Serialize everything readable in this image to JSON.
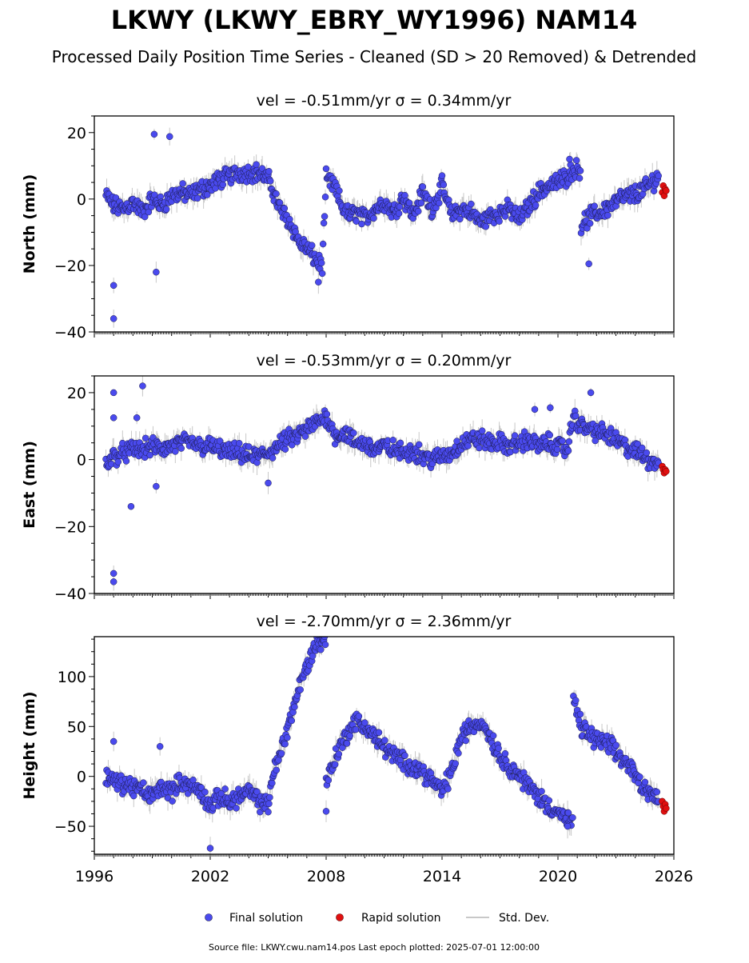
{
  "title": "LKWY (LKWY_EBRY_WY1996) NAM14",
  "subtitle": "Processed Daily Position Time Series - Cleaned (SD > 20 Removed) & Detrended",
  "footer": "Source file: LKWY.cwu.nam14.pos  Last epoch plotted: 2025-07-01 12:00:00",
  "legend": {
    "placement": "bottom-center",
    "items": [
      {
        "label": "Final solution",
        "color": "#4a4aee",
        "marker": "circle"
      },
      {
        "label": "Rapid solution",
        "color": "#e01010",
        "marker": "circle"
      },
      {
        "label": "Std. Dev.",
        "color": "#c8c8c8",
        "marker": "line"
      }
    ]
  },
  "colors": {
    "final": "#4a4aee",
    "rapid": "#e01010",
    "stddev": "#c8c8c8",
    "edge": "#1a1a4a"
  },
  "chart_data": [
    {
      "type": "scatter",
      "panel_title": "vel = -0.51mm/yr   σ = 0.34mm/yr",
      "ylabel": "North (mm)",
      "xlim": [
        1996,
        2026
      ],
      "ylim": [
        -40,
        25
      ],
      "yticks": [
        -40,
        -20,
        0,
        20
      ],
      "xticks": [
        1996,
        2002,
        2008,
        2014,
        2020,
        2026
      ],
      "grid": false,
      "series": [
        {
          "name": "Final solution",
          "role": "final",
          "x": [
            1996.6,
            1997.0,
            1997.5,
            1998.0,
            1998.5,
            1999.0,
            1999.5,
            2000.0,
            2000.5,
            2001.0,
            2001.5,
            2002.0,
            2002.5,
            2003.0,
            2003.5,
            2004.0,
            2004.5,
            2005.0,
            2005.3,
            2005.6,
            2006.0,
            2006.3,
            2006.6,
            2007.0,
            2007.3,
            2007.6,
            2007.8,
            2008.0,
            2008.4,
            2008.8,
            2009.2,
            2009.6,
            2010.0,
            2010.5,
            2011.0,
            2011.5,
            2012.0,
            2012.5,
            2013.0,
            2013.5,
            2014.0,
            2014.5,
            2015.0,
            2015.5,
            2016.0,
            2016.5,
            2017.0,
            2017.5,
            2018.0,
            2018.5,
            2019.0,
            2019.5,
            2020.0,
            2020.5,
            2020.8,
            2021.2,
            2021.7,
            2022.2,
            2022.7,
            2023.2,
            2023.7,
            2024.2,
            2024.7,
            2025.2
          ],
          "y": [
            1,
            -2,
            -3,
            -1,
            -4,
            0,
            -2,
            1,
            2,
            1,
            3,
            4,
            6,
            7,
            8,
            8,
            8,
            6,
            2,
            -3,
            -6,
            -9,
            -13,
            -15,
            -17,
            -19,
            -20,
            6,
            4,
            -2,
            -5,
            -4,
            -6,
            -3,
            -1,
            -4,
            1,
            -5,
            2,
            -3,
            4,
            -5,
            -3,
            -4,
            -7,
            -5,
            -4,
            -3,
            -6,
            -2,
            2,
            4,
            5,
            7,
            9,
            -8,
            -5,
            -4,
            -2,
            0,
            1,
            2,
            4,
            7
          ],
          "extras": [
            [
              1997.0,
              -26
            ],
            [
              1997.0,
              -36
            ],
            [
              1999.2,
              -22
            ],
            [
              1999.1,
              19.5
            ],
            [
              1999.9,
              18.8
            ],
            [
              2007.6,
              -25
            ],
            [
              2021.6,
              -19.5
            ],
            [
              2020.6,
              12
            ]
          ]
        },
        {
          "name": "Rapid solution",
          "role": "rapid",
          "x": [
            2025.4,
            2025.45,
            2025.5,
            2025.55,
            2025.6
          ],
          "y": [
            2,
            4,
            1,
            3,
            2.5
          ]
        }
      ]
    },
    {
      "type": "scatter",
      "panel_title": "vel = -0.53mm/yr   σ = 0.20mm/yr",
      "ylabel": "East (mm)",
      "xlim": [
        1996,
        2026
      ],
      "ylim": [
        -40,
        25
      ],
      "yticks": [
        -40,
        -20,
        0,
        20
      ],
      "xticks": [
        1996,
        2002,
        2008,
        2014,
        2020,
        2026
      ],
      "grid": false,
      "series": [
        {
          "name": "Final solution",
          "role": "final",
          "x": [
            1996.6,
            1997.0,
            1997.5,
            1998.0,
            1998.5,
            1999.0,
            1999.5,
            2000.0,
            2000.5,
            2001.0,
            2001.5,
            2002.0,
            2002.5,
            2003.0,
            2003.5,
            2004.0,
            2004.5,
            2005.0,
            2005.5,
            2006.0,
            2006.5,
            2007.0,
            2007.5,
            2008.0,
            2008.5,
            2009.0,
            2009.5,
            2010.0,
            2010.5,
            2011.0,
            2011.5,
            2012.0,
            2012.5,
            2013.0,
            2013.5,
            2014.0,
            2014.5,
            2015.0,
            2015.5,
            2016.0,
            2016.5,
            2017.0,
            2017.5,
            2018.0,
            2018.5,
            2019.0,
            2019.5,
            2020.0,
            2020.5,
            2020.8,
            2021.2,
            2021.7,
            2022.2,
            2022.7,
            2023.2,
            2023.7,
            2024.2,
            2024.7,
            2025.2
          ],
          "y": [
            -1,
            1,
            2,
            3,
            3,
            4,
            3,
            4,
            5,
            5,
            4,
            4,
            3,
            2,
            2,
            1,
            1,
            2,
            4,
            6,
            7,
            9,
            11,
            13,
            7,
            8,
            5,
            5,
            3,
            4,
            3,
            2,
            3,
            1,
            0,
            1,
            2,
            5,
            6,
            6,
            5,
            5,
            4,
            5,
            6,
            4,
            5,
            4,
            3,
            13,
            10,
            9,
            8,
            7,
            5,
            3,
            2,
            0,
            -1
          ],
          "extras": [
            [
              1997.0,
              20
            ],
            [
              1997.0,
              12.5
            ],
            [
              1997.0,
              -34
            ],
            [
              1997.0,
              -36.5
            ],
            [
              1997.9,
              -14
            ],
            [
              1998.2,
              12.5
            ],
            [
              1998.5,
              22
            ],
            [
              1999.2,
              -8
            ],
            [
              2018.8,
              15
            ],
            [
              2019.6,
              15.5
            ],
            [
              2021.7,
              20
            ],
            [
              2005.0,
              -7
            ]
          ]
        },
        {
          "name": "Rapid solution",
          "role": "rapid",
          "x": [
            2025.4,
            2025.45,
            2025.5,
            2025.55,
            2025.6
          ],
          "y": [
            -2,
            -3,
            -4,
            -3,
            -3.5
          ]
        }
      ]
    },
    {
      "type": "scatter",
      "panel_title": "vel = -2.70mm/yr   σ = 2.36mm/yr",
      "ylabel": "Height (mm)",
      "xlim": [
        1996,
        2026
      ],
      "ylim": [
        -78,
        140
      ],
      "yticks": [
        -50,
        0,
        50,
        100
      ],
      "xticks": [
        1996,
        2002,
        2008,
        2014,
        2020,
        2026
      ],
      "xtick_labels": [
        "1996",
        "2002",
        "2008",
        "2014",
        "2020",
        "2026"
      ],
      "grid": false,
      "series": [
        {
          "name": "Final solution",
          "role": "final",
          "x": [
            1996.6,
            1997.0,
            1997.5,
            1998.0,
            1998.5,
            1999.0,
            1999.5,
            2000.0,
            2000.5,
            2001.0,
            2001.5,
            2002.0,
            2002.5,
            2003.0,
            2003.5,
            2004.0,
            2004.5,
            2005.0,
            2005.2,
            2005.5,
            2005.8,
            2006.1,
            2006.4,
            2006.7,
            2007.0,
            2007.3,
            2007.6,
            2008.0,
            2008.5,
            2009.0,
            2009.5,
            2010.0,
            2010.5,
            2011.0,
            2011.5,
            2012.0,
            2012.5,
            2013.0,
            2013.5,
            2014.0,
            2014.5,
            2015.0,
            2015.5,
            2016.0,
            2016.5,
            2017.0,
            2017.5,
            2018.0,
            2018.5,
            2019.0,
            2019.5,
            2020.0,
            2020.5,
            2020.8,
            2021.2,
            2021.7,
            2022.2,
            2022.7,
            2023.2,
            2023.7,
            2024.2,
            2024.7,
            2025.2
          ],
          "y": [
            0,
            -5,
            -8,
            -10,
            -15,
            -20,
            -10,
            -15,
            -5,
            -10,
            -15,
            -30,
            -20,
            -25,
            -20,
            -15,
            -25,
            -30,
            0,
            15,
            35,
            55,
            75,
            95,
            110,
            125,
            135,
            -5,
            20,
            40,
            55,
            50,
            40,
            30,
            20,
            15,
            10,
            5,
            -5,
            -15,
            5,
            40,
            50,
            55,
            40,
            20,
            10,
            0,
            -10,
            -20,
            -30,
            -35,
            -45,
            75,
            50,
            40,
            35,
            30,
            20,
            10,
            -5,
            -15,
            -25
          ],
          "extras": [
            [
              1997.0,
              35
            ],
            [
              1999.4,
              30
            ],
            [
              2002.0,
              -72
            ],
            [
              2008.0,
              -35
            ],
            [
              2020.5,
              -50
            ]
          ]
        },
        {
          "name": "Rapid solution",
          "role": "rapid",
          "x": [
            2025.4,
            2025.45,
            2025.5,
            2025.55,
            2025.6
          ],
          "y": [
            -25,
            -30,
            -35,
            -28,
            -32
          ]
        }
      ]
    }
  ]
}
